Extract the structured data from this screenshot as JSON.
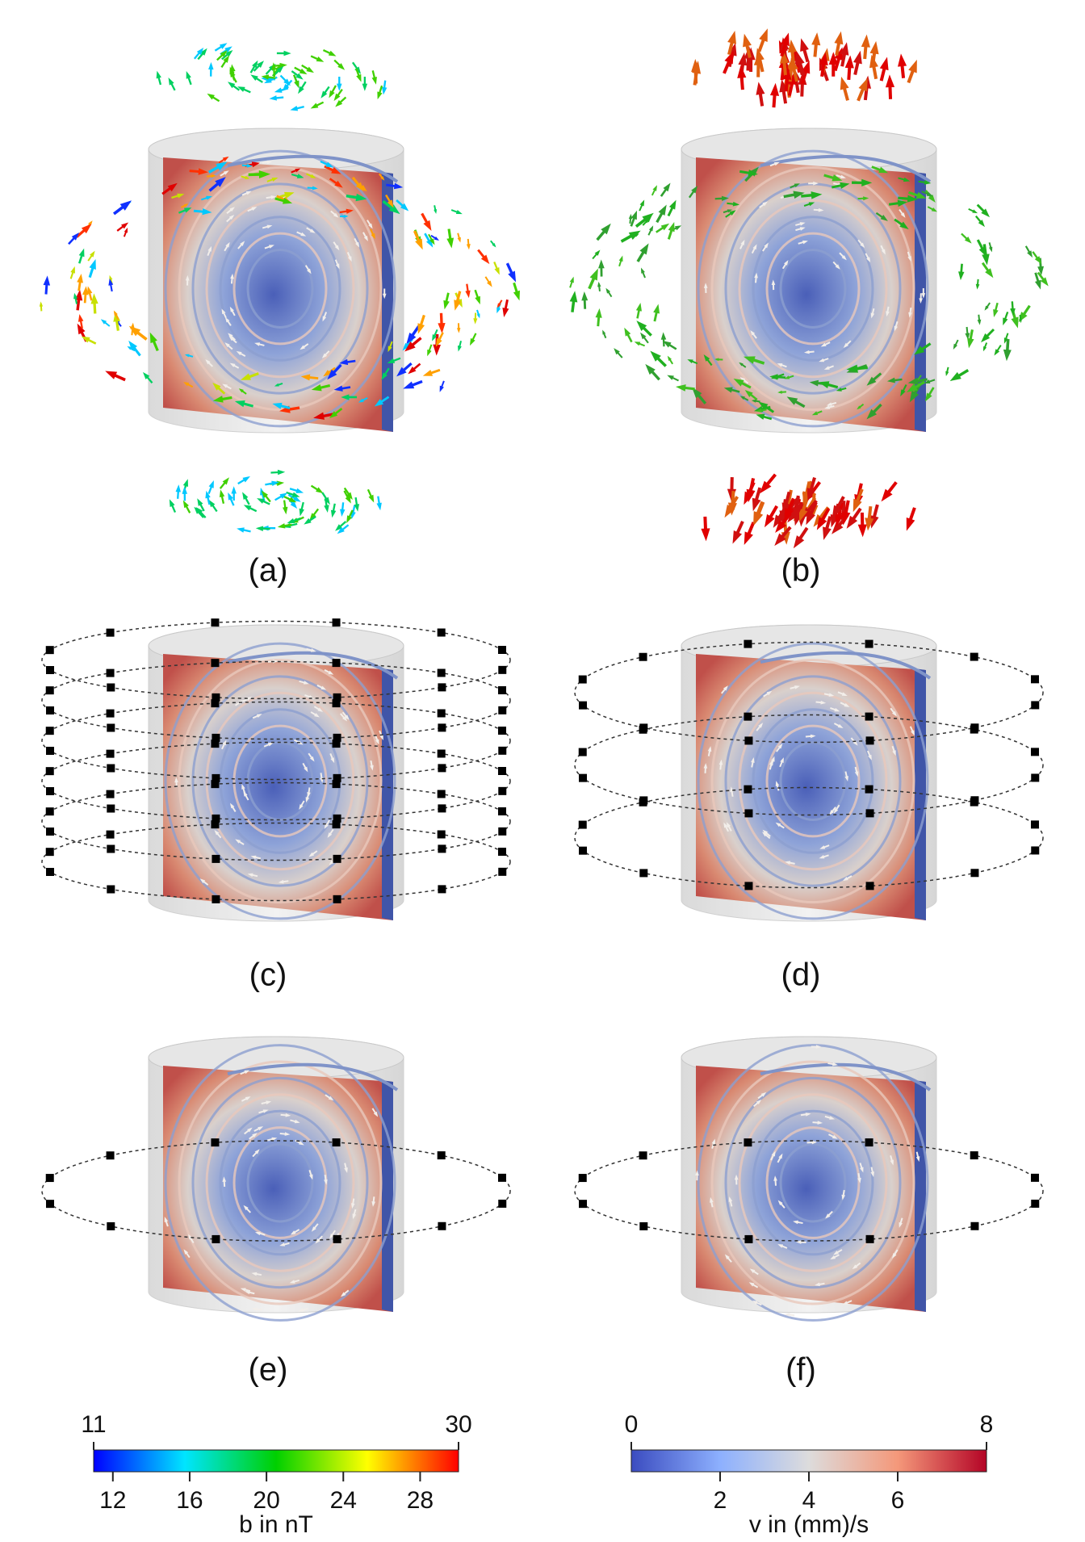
{
  "panels": [
    {
      "label": "(a)"
    },
    {
      "label": "(b)"
    },
    {
      "label": "(c)"
    },
    {
      "label": "(d)"
    },
    {
      "label": "(e)"
    },
    {
      "label": "(f)"
    }
  ],
  "colorbars": [
    {
      "title": "b in nT",
      "range": [
        11,
        30
      ],
      "ticks": [
        12,
        16,
        20,
        24,
        28
      ],
      "colors": [
        "#0000ff",
        "#00e5ff",
        "#00d000",
        "#ffff00",
        "#ff0000"
      ]
    },
    {
      "title": "v in (mm)/s",
      "range": [
        0,
        8
      ],
      "ticks": [
        2,
        4,
        6
      ],
      "colors": [
        "#3b4cc0",
        "#8db0fe",
        "#dddcdc",
        "#f4987a",
        "#b40426"
      ]
    }
  ]
}
